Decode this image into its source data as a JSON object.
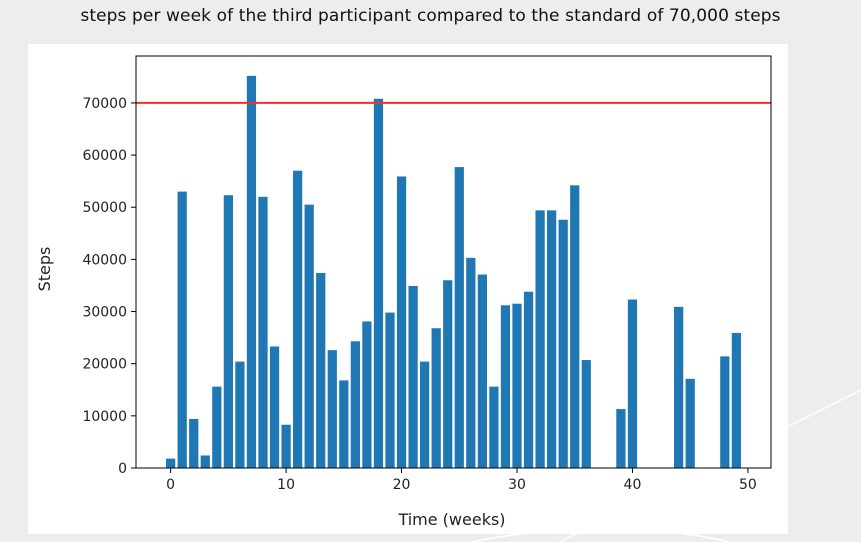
{
  "caption": "steps per week of the third participant compared to the standard of 70,000 steps",
  "chart_data": {
    "type": "bar",
    "title": "",
    "xlabel": "Time (weeks)",
    "ylabel": "Steps",
    "xlim": [
      -3,
      52
    ],
    "ylim": [
      0,
      79000
    ],
    "xticks": [
      0,
      10,
      20,
      30,
      40,
      50
    ],
    "yticks": [
      0,
      10000,
      20000,
      30000,
      40000,
      50000,
      60000,
      70000
    ],
    "bar_color": "#1f77b4",
    "reference_line": {
      "y": 70000,
      "color": "#ff2a2a"
    },
    "grid": false,
    "x": [
      0,
      1,
      2,
      3,
      4,
      5,
      6,
      7,
      8,
      9,
      10,
      11,
      12,
      13,
      14,
      15,
      16,
      17,
      18,
      19,
      20,
      21,
      22,
      23,
      24,
      25,
      26,
      27,
      28,
      29,
      30,
      31,
      32,
      33,
      34,
      35,
      36,
      39,
      40,
      44,
      45,
      48,
      49
    ],
    "values": [
      1800,
      53000,
      9400,
      2400,
      15600,
      52300,
      20400,
      75200,
      52000,
      23300,
      8300,
      57000,
      50500,
      37400,
      22600,
      16800,
      24300,
      28100,
      70800,
      29800,
      55900,
      34900,
      20400,
      26800,
      36000,
      57700,
      40300,
      37100,
      15600,
      31200,
      31500,
      33800,
      49400,
      49400,
      47600,
      54200,
      20700,
      11300,
      32300,
      30900,
      17100,
      21400,
      25900
    ]
  }
}
